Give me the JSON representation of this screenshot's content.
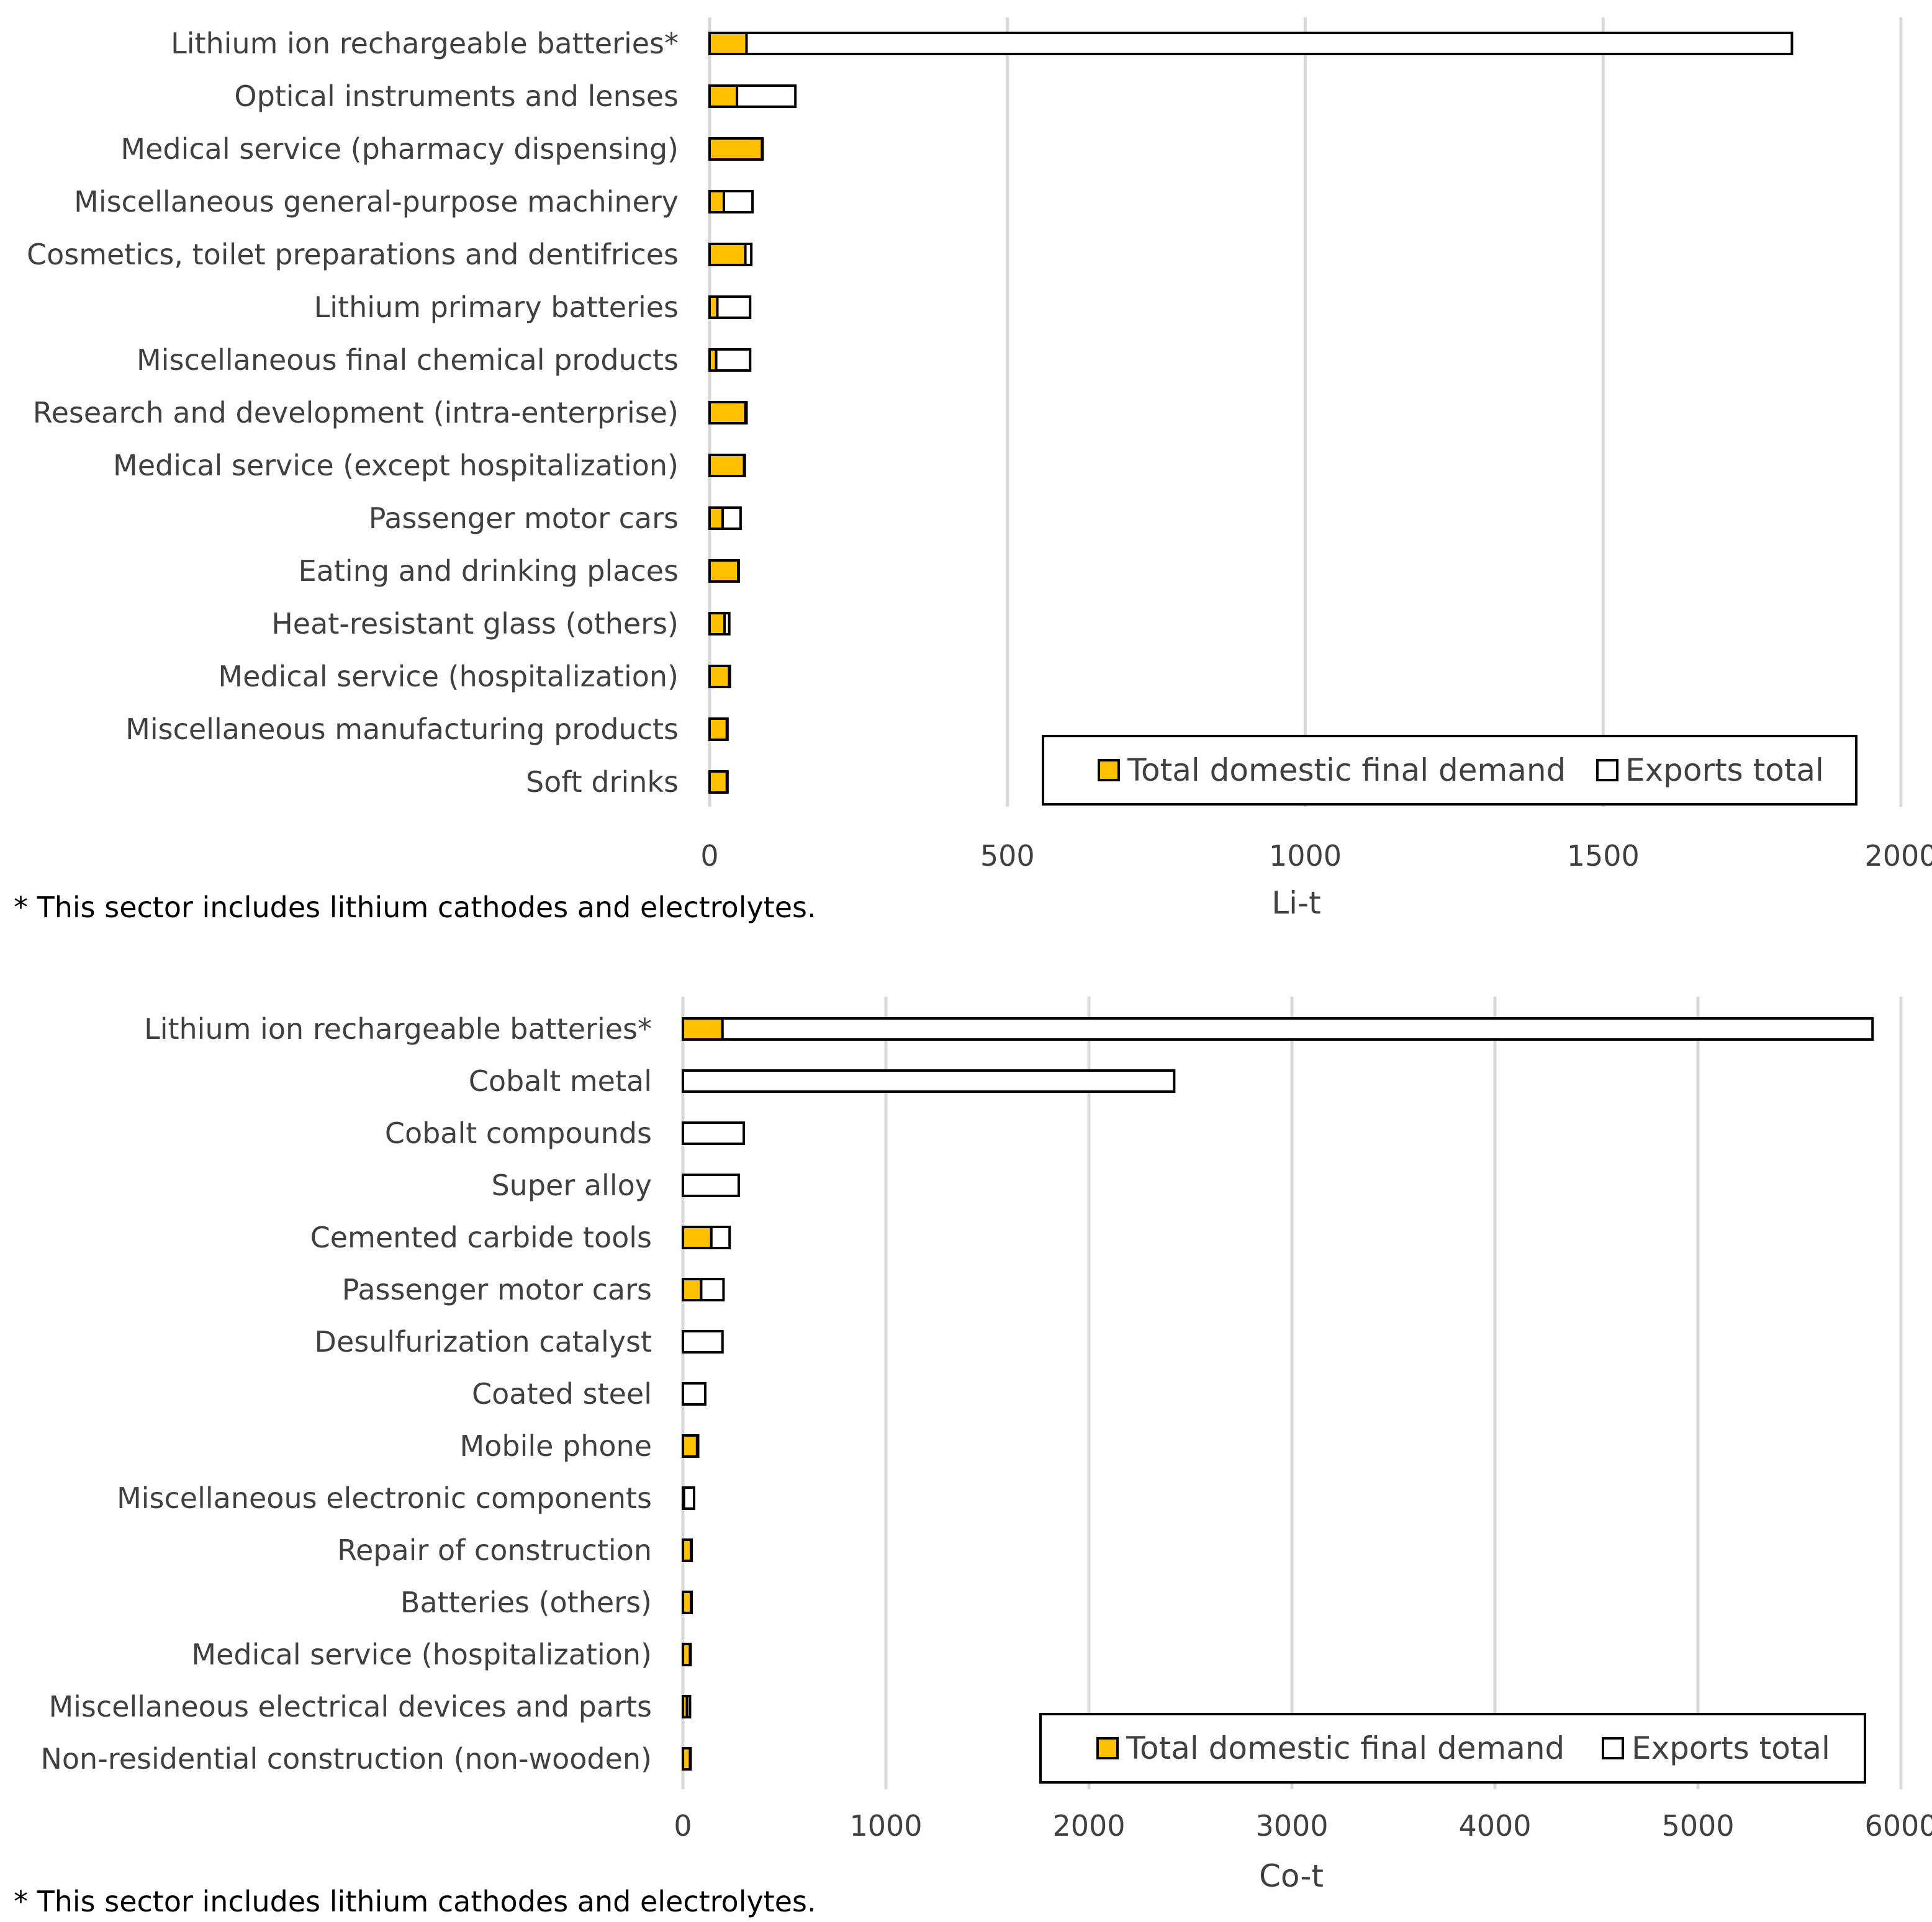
{
  "colors": {
    "domestic": "#FFC000",
    "exports": "#FFFFFF",
    "outline": "#000000",
    "grid": "#D9D9D9",
    "text": "#404040"
  },
  "chart_data": [
    {
      "type": "bar",
      "orientation": "horizontal",
      "stacked": true,
      "xlabel": "Li-t",
      "xlim": [
        0,
        2000
      ],
      "xticks": [
        "0",
        "500",
        "1000",
        "1500",
        "2000"
      ],
      "xtick_values": [
        0,
        500,
        1000,
        1500,
        2000
      ],
      "legend_position": "bottom-right",
      "categories": [
        "Lithium ion rechargeable batteries*",
        "Optical instruments and lenses",
        "Medical service (pharmacy dispensing)",
        "Miscellaneous general-purpose machinery",
        "Cosmetics, toilet preparations and dentifrices",
        "Lithium primary batteries",
        "Miscellaneous final chemical products",
        "Research and development (intra-enterprise)",
        "Medical service (except hospitalization)",
        "Passenger motor cars",
        "Eating and drinking places",
        "Heat-resistant glass (others)",
        "Medical service (hospitalization)",
        "Miscellaneous manufacturing products",
        "Soft drinks"
      ],
      "series": [
        {
          "name": "Total domestic final demand",
          "values": [
            62,
            46,
            88,
            24,
            60,
            13,
            11,
            60,
            58,
            22,
            48,
            25,
            33,
            29,
            29
          ]
        },
        {
          "name": "Exports total",
          "values": [
            1755,
            98,
            1,
            48,
            10,
            55,
            57,
            2,
            1,
            30,
            1,
            8,
            1,
            1,
            1
          ]
        }
      ],
      "footnote": "* This sector includes lithium cathodes and electrolytes."
    },
    {
      "type": "bar",
      "orientation": "horizontal",
      "stacked": true,
      "xlabel": "Co-t",
      "xlim": [
        0,
        6000
      ],
      "xticks": [
        "0",
        "1000",
        "2000",
        "3000",
        "4000",
        "5000",
        "6000"
      ],
      "xtick_values": [
        0,
        1000,
        2000,
        3000,
        4000,
        5000,
        6000
      ],
      "legend_position": "bottom-right",
      "categories": [
        "Lithium ion rechargeable batteries*",
        "Cobalt metal",
        "Cobalt compounds",
        "Super alloy",
        "Cemented carbide tools",
        "Passenger motor cars",
        "Desulfurization catalyst",
        "Coated steel",
        "Mobile phone",
        "Miscellaneous electronic components",
        "Repair of construction",
        "Batteries (others)",
        "Medical service (hospitalization)",
        "Miscellaneous electrical devices and parts",
        "Non-residential construction (non-wooden)"
      ],
      "series": [
        {
          "name": "Total domestic final demand",
          "values": [
            195,
            0,
            0,
            0,
            140,
            90,
            0,
            0,
            70,
            5,
            40,
            40,
            35,
            20,
            35
          ]
        },
        {
          "name": "Exports total",
          "values": [
            5665,
            2420,
            300,
            275,
            90,
            110,
            195,
            110,
            5,
            50,
            2,
            2,
            2,
            15,
            2
          ]
        }
      ],
      "footnote": "* This sector includes lithium cathodes and electrolytes."
    }
  ]
}
